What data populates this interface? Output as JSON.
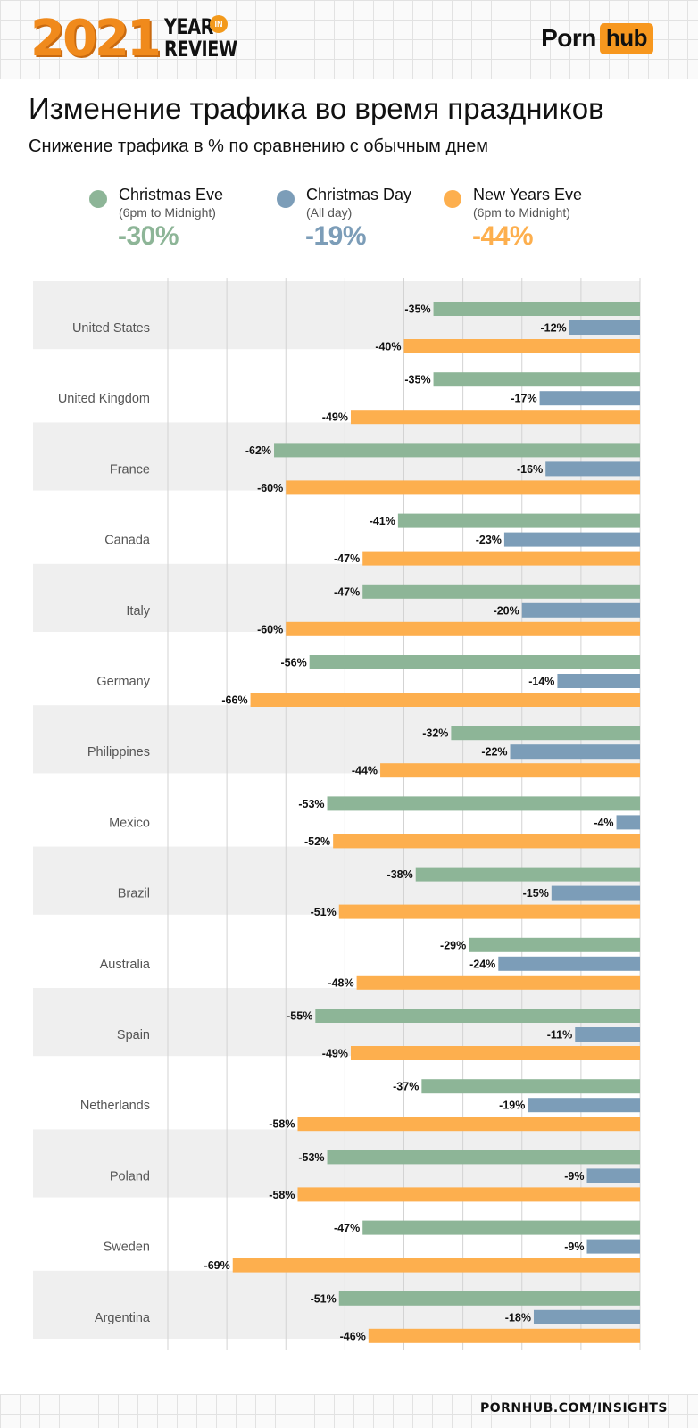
{
  "header": {
    "year": "2021",
    "year_in_review_line1": "YEAR",
    "year_in_review_line2": "REVIEW",
    "in_badge": "IN",
    "brand_part1": "Porn",
    "brand_part2": "hub"
  },
  "colors": {
    "christmas_eve": "#8db597",
    "christmas_day": "#7c9db8",
    "new_years_eve": "#fdaf4e",
    "row_band": "#efefef",
    "brand_orange": "#f7971e"
  },
  "chart_data": {
    "type": "bar",
    "orientation": "horizontal",
    "title": "Изменение трафика во время праздников",
    "subtitle": "Снижение трафика в % по сравнению с обычным днем",
    "categories": [
      "United States",
      "United Kingdom",
      "France",
      "Canada",
      "Italy",
      "Germany",
      "Philippines",
      "Mexico",
      "Brazil",
      "Australia",
      "Spain",
      "Netherlands",
      "Poland",
      "Sweden",
      "Argentina"
    ],
    "series": [
      {
        "name": "Christmas Eve",
        "note": "(6pm to Midnight)",
        "average": "-30%",
        "color": "#8db597",
        "values": [
          -35,
          -35,
          -62,
          -41,
          -47,
          -56,
          -32,
          -53,
          -38,
          -29,
          -55,
          -37,
          -53,
          -47,
          -51
        ]
      },
      {
        "name": "Christmas Day",
        "note": "(All day)",
        "average": "-19%",
        "color": "#7c9db8",
        "values": [
          -12,
          -17,
          -16,
          -23,
          -20,
          -14,
          -22,
          -4,
          -15,
          -24,
          -11,
          -19,
          -9,
          -9,
          -18
        ]
      },
      {
        "name": "New Years Eve",
        "note": "(6pm to Midnight)",
        "average": "-44%",
        "color": "#fdaf4e",
        "values": [
          -40,
          -49,
          -60,
          -47,
          -60,
          -66,
          -44,
          -52,
          -51,
          -48,
          -49,
          -58,
          -58,
          -69,
          -46
        ]
      }
    ],
    "value_suffix": "%",
    "xlim": [
      -80,
      0
    ],
    "grid": true,
    "legend_position": "top"
  },
  "footer": {
    "url": "PORNHUB.COM/INSIGHTS"
  }
}
